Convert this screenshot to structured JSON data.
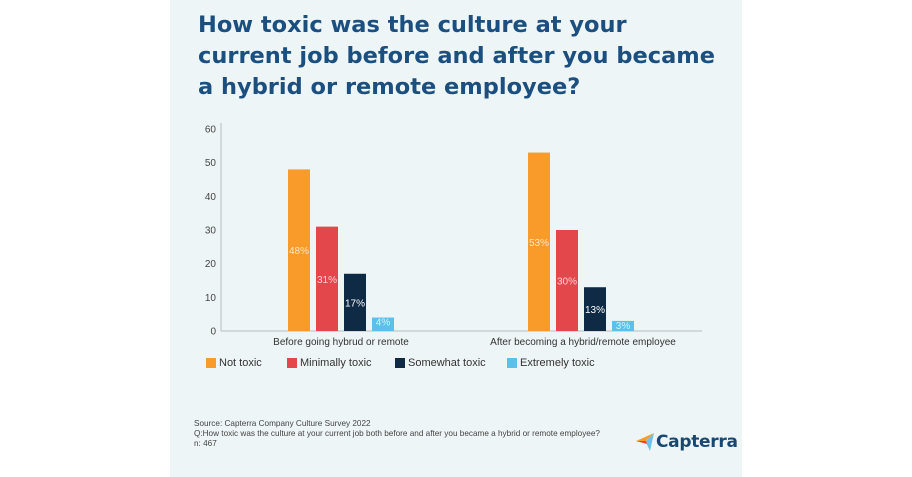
{
  "title": "How toxic was the culture at your current job before and after you became a hybrid or remote employee?",
  "chart_data": {
    "type": "bar",
    "categories": [
      "Before going hybrud or remote",
      "After becoming a hybrid/remote employee"
    ],
    "series": [
      {
        "name": "Not toxic",
        "color": "#f99b2a",
        "values": [
          48,
          53
        ],
        "labels": [
          "48%",
          "53%"
        ],
        "label_color": "#fde6c8"
      },
      {
        "name": "Minimally toxic",
        "color": "#e4474b",
        "values": [
          31,
          30
        ],
        "labels": [
          "31%",
          "30%"
        ],
        "label_color": "#fbd3d3"
      },
      {
        "name": "Somewhat toxic",
        "color": "#0e2a45",
        "values": [
          17,
          13
        ],
        "labels": [
          "17%",
          "13%"
        ],
        "label_color": "#ffffff"
      },
      {
        "name": "Extremely toxic",
        "color": "#5cc1ea",
        "values": [
          4,
          3
        ],
        "labels": [
          "4%",
          "3%"
        ],
        "label_color": "#d7f0fb"
      }
    ],
    "yticks": [
      0,
      10,
      20,
      30,
      40,
      50,
      60
    ],
    "ylim": [
      0,
      60
    ],
    "grid": false,
    "legend": "bottom-left"
  },
  "footer": {
    "source": "Source: Capterra Company Culture Survey 2022",
    "question": "Q:How toxic was the culture at your current job both before and after you became a hybrid or remote employee?",
    "n": "n: 467"
  },
  "logo": "Capterra"
}
